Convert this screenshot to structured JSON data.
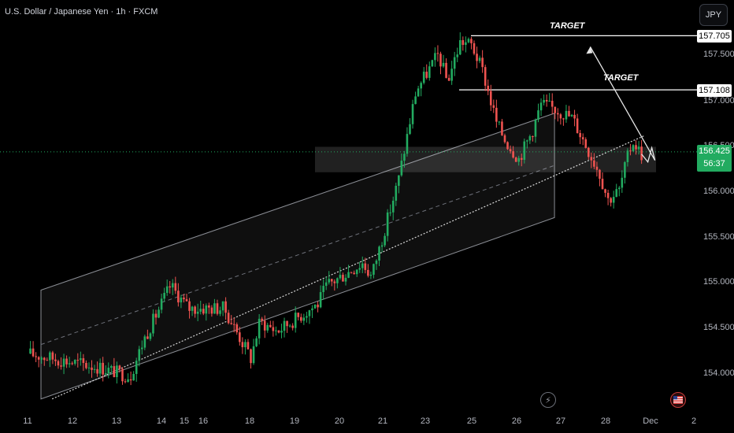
{
  "header": {
    "title": "U.S. Dollar / Japanese Yen · 1h · FXCM",
    "currency_button": "JPY"
  },
  "annotations": {
    "target_1": {
      "label": "TARGET",
      "price": "157.705"
    },
    "target_2": {
      "label": "TARGET",
      "price": "157.108"
    }
  },
  "current_price": {
    "price": "156.425",
    "countdown": "56:37"
  },
  "icons": {
    "lightning": "lightning-icon",
    "flag": "us-flag-icon"
  },
  "colors": {
    "bull": "#26a69a",
    "bull_bright": "#22ab60",
    "bear": "#ef5350",
    "background": "#000000"
  },
  "chart_data": {
    "type": "candlestick",
    "title": "U.S. Dollar / Japanese Yen · 1h · FXCM",
    "ylim": [
      153.75,
      158.0
    ],
    "y_ticks": [
      "157.500",
      "157.000",
      "156.500",
      "156.000",
      "155.500",
      "155.000",
      "154.500",
      "154.000"
    ],
    "x_ticks": [
      "11",
      "12",
      "13",
      "14",
      "15",
      "16",
      "18",
      "19",
      "20",
      "21",
      "23",
      "25",
      "26",
      "27",
      "28",
      "Dec",
      "2"
    ],
    "price_path": [
      [
        0,
        154.2
      ],
      [
        1.6,
        154.05
      ],
      [
        2.3,
        153.95
      ],
      [
        2.6,
        154.35
      ],
      [
        3.2,
        154.95
      ],
      [
        3.6,
        154.7
      ],
      [
        4.4,
        154.7
      ],
      [
        5.0,
        154.15
      ],
      [
        5.2,
        154.55
      ],
      [
        5.6,
        154.45
      ],
      [
        6.5,
        154.75
      ],
      [
        6.7,
        154.95
      ],
      [
        7.5,
        155.2
      ],
      [
        7.7,
        155.05
      ],
      [
        8.3,
        156.1
      ],
      [
        8.7,
        157.1
      ],
      [
        9.2,
        157.5
      ],
      [
        9.4,
        157.2
      ],
      [
        9.7,
        157.65
      ],
      [
        9.95,
        157.6
      ],
      [
        10.2,
        157.3
      ],
      [
        10.5,
        156.75
      ],
      [
        10.7,
        156.55
      ],
      [
        11.0,
        156.35
      ],
      [
        11.3,
        156.65
      ],
      [
        11.5,
        156.95
      ],
      [
        11.8,
        156.9
      ],
      [
        12.2,
        156.8
      ],
      [
        12.5,
        156.5
      ],
      [
        12.8,
        156.2
      ],
      [
        13.0,
        155.9
      ],
      [
        13.25,
        156.0
      ],
      [
        13.4,
        156.3
      ],
      [
        13.55,
        156.55
      ],
      [
        13.75,
        156.4
      ]
    ],
    "channel": {
      "upper": [
        [
          0.3,
          154.9
        ],
        [
          11.8,
          156.85
        ]
      ],
      "lower": [
        [
          0.3,
          153.7
        ],
        [
          11.8,
          155.7
        ]
      ]
    },
    "trendline": [
      [
        0.55,
        153.7
      ],
      [
        13.8,
        156.6
      ]
    ],
    "zone": {
      "from": 156.2,
      "to": 156.48
    },
    "targets": [
      157.705,
      157.108
    ],
    "current": 156.425
  }
}
